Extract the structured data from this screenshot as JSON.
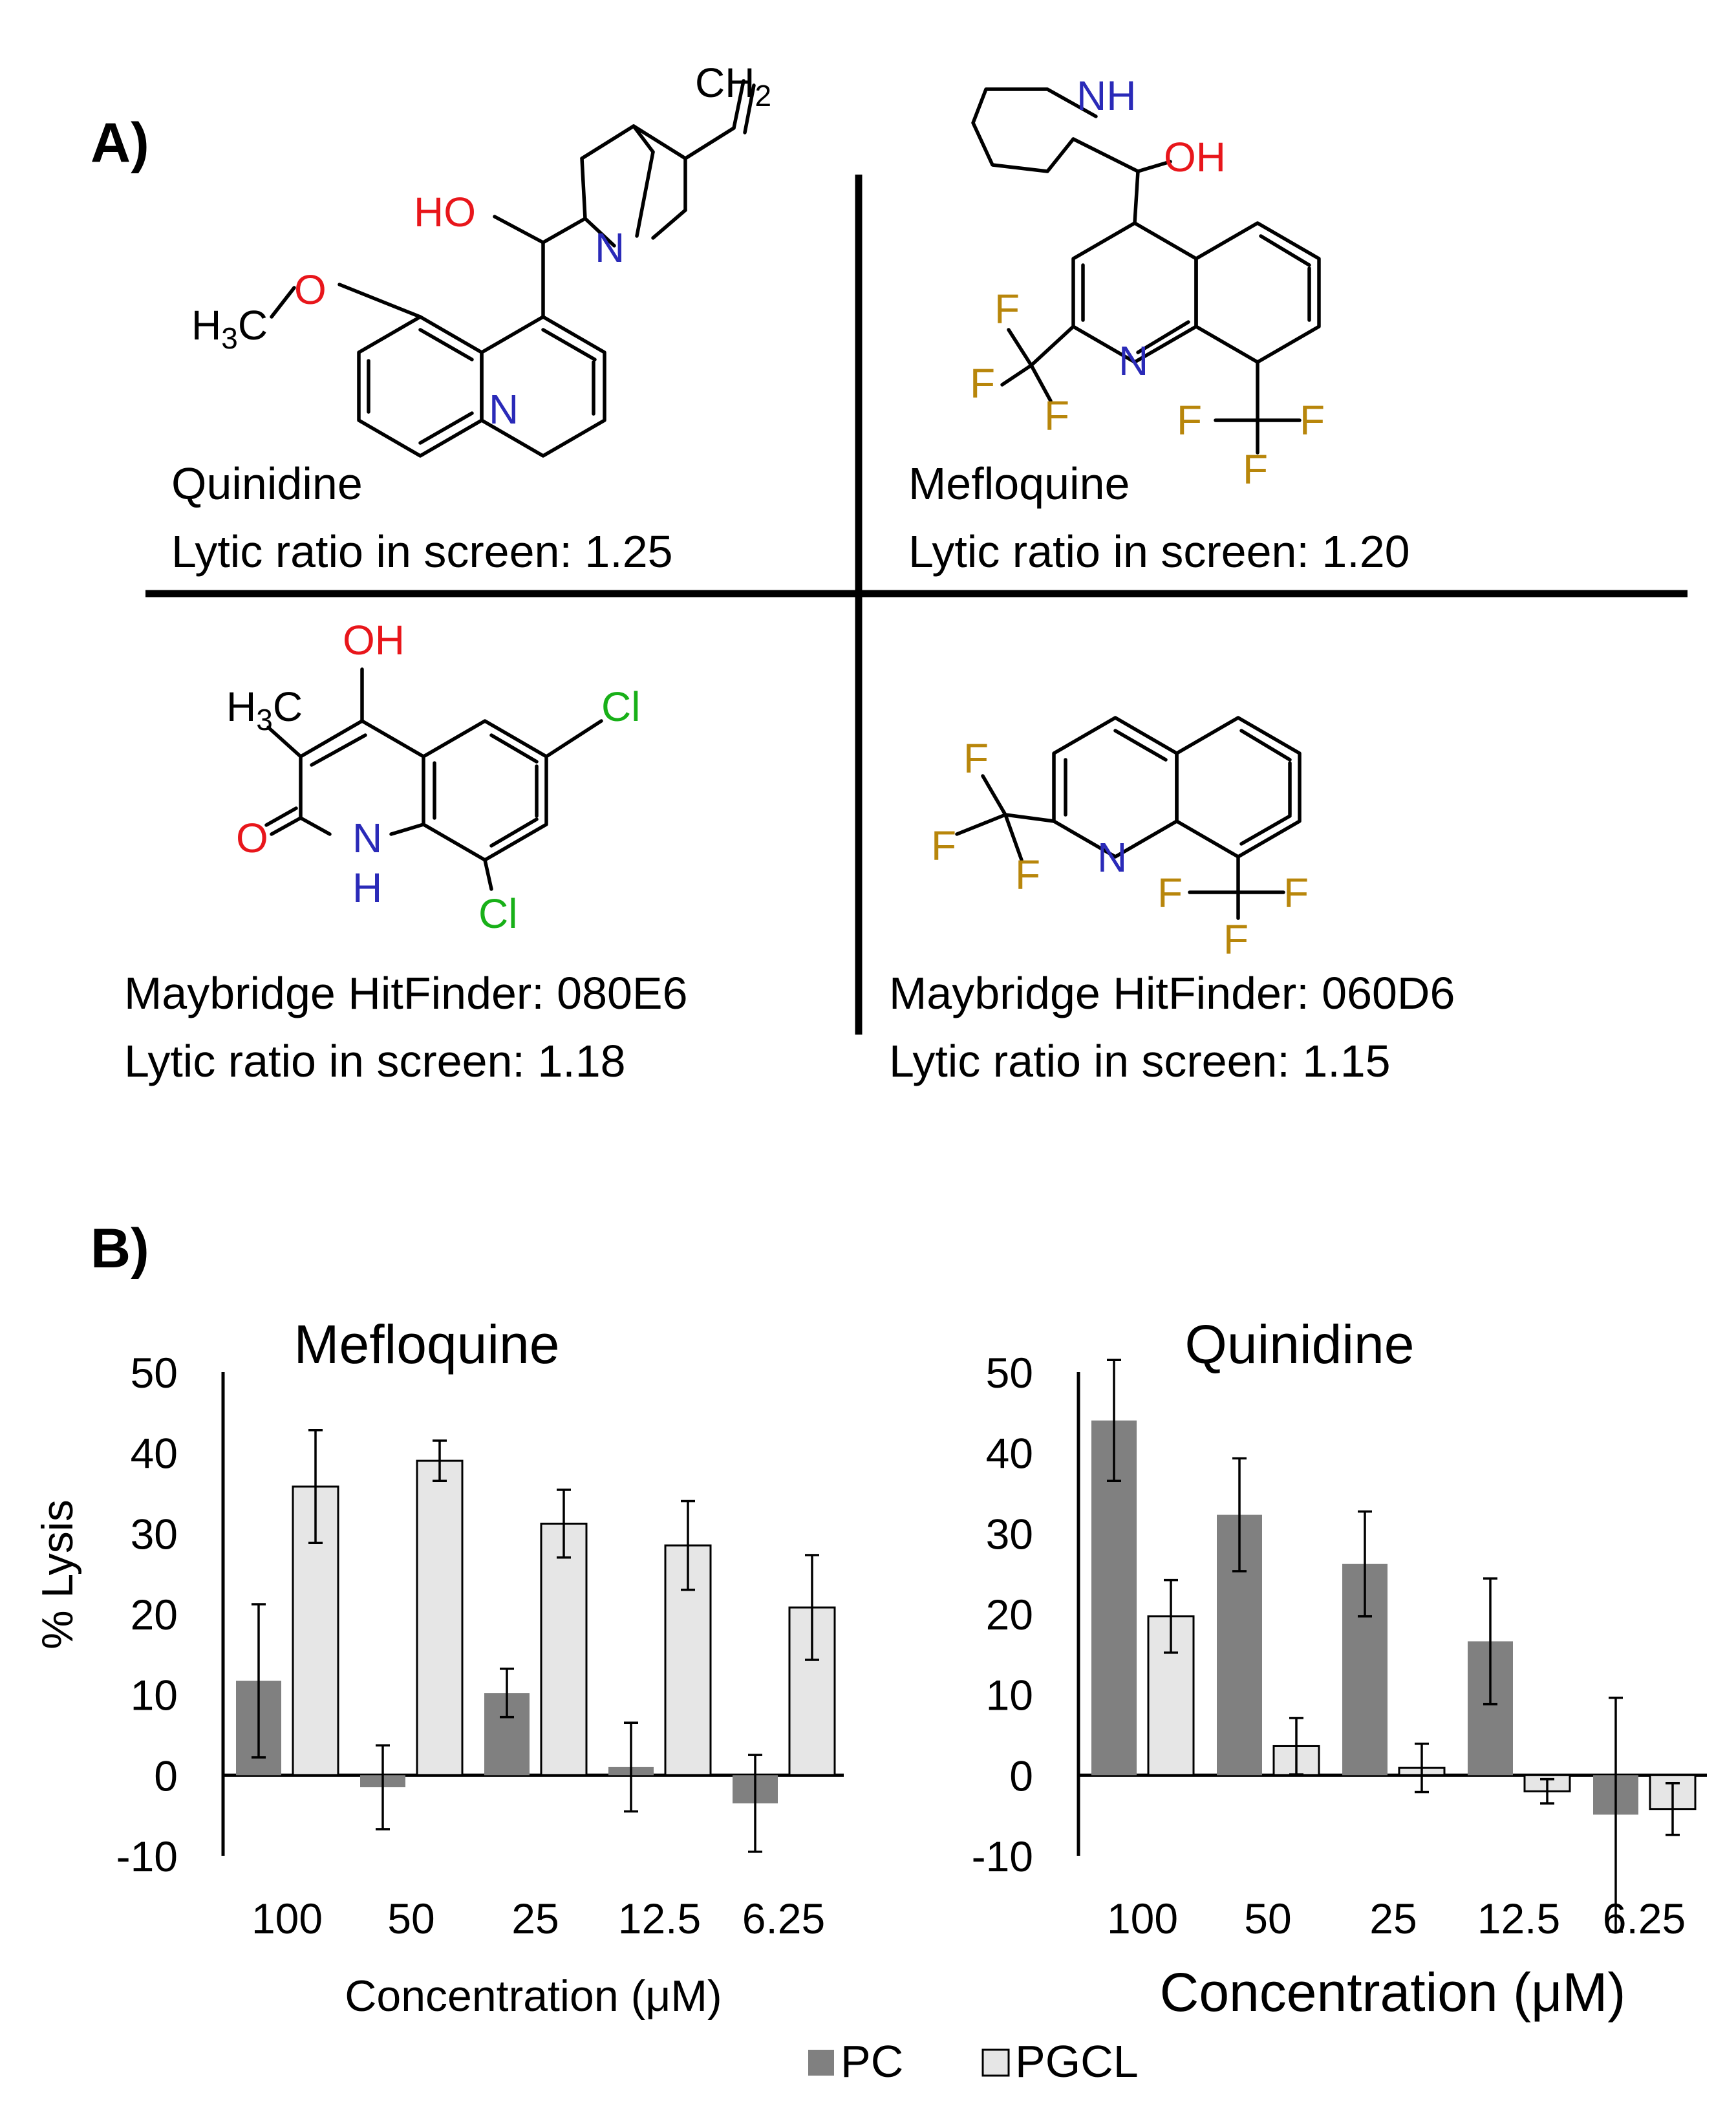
{
  "panel_a": {
    "label": "A)",
    "compounds": [
      {
        "name": "Quinidine",
        "ratio": "Lytic ratio in screen: 1.25"
      },
      {
        "name": "Mefloquine",
        "ratio": "Lytic ratio in screen: 1.20"
      },
      {
        "name": "Maybridge HitFinder: 080E6",
        "ratio": "Lytic ratio in screen: 1.18"
      },
      {
        "name": "Maybridge HitFinder: 060D6",
        "ratio": "Lytic ratio in screen: 1.15"
      }
    ],
    "atom_colors": {
      "N": "#2a2ab8",
      "O": "#e8161b",
      "F": "#b8860b",
      "Cl": "#18b018"
    }
  },
  "panel_b": {
    "label": "B)"
  },
  "chart_data": [
    {
      "type": "bar",
      "title": "Mefloquine",
      "categories": [
        "100",
        "50",
        "25",
        "12.5",
        "6.25"
      ],
      "xlabel": "Concentration (μM)",
      "ylabel": "% Lysis",
      "ylim": [
        -10,
        50
      ],
      "yticks": [
        "50",
        "40",
        "30",
        "20",
        "10",
        "0",
        "-10"
      ],
      "grid": false,
      "series": [
        {
          "name": "PC",
          "values": [
            11.7,
            -1.5,
            10.2,
            1.0,
            -3.5
          ],
          "errors": [
            9.5,
            5.2,
            3.0,
            5.5,
            6.0
          ]
        },
        {
          "name": "PGCL",
          "values": [
            35.8,
            39.0,
            31.2,
            28.5,
            20.8
          ],
          "errors": [
            7.0,
            2.5,
            4.2,
            5.5,
            6.5
          ]
        }
      ]
    },
    {
      "type": "bar",
      "title": "Quinidine",
      "categories": [
        "100",
        "50",
        "25",
        "12.5",
        "6.25"
      ],
      "xlabel": "Concentration (μM)",
      "ylabel": "",
      "ylim": [
        -10,
        50
      ],
      "yticks": [
        "50",
        "40",
        "30",
        "20",
        "10",
        "0",
        "-10"
      ],
      "grid": false,
      "series": [
        {
          "name": "PC",
          "values": [
            44.0,
            32.3,
            26.2,
            16.6,
            -4.9
          ],
          "errors": [
            7.5,
            7.0,
            6.5,
            7.8,
            14.5
          ]
        },
        {
          "name": "PGCL",
          "values": [
            19.7,
            3.6,
            0.9,
            -2.0,
            -4.2
          ],
          "errors": [
            4.5,
            3.5,
            3.0,
            1.5,
            3.2
          ]
        }
      ]
    }
  ],
  "legend": {
    "position": "bottom-center",
    "items": [
      {
        "label": "PC",
        "color": "#808080"
      },
      {
        "label": "PGCL",
        "color": "#e6e6e6"
      }
    ]
  }
}
